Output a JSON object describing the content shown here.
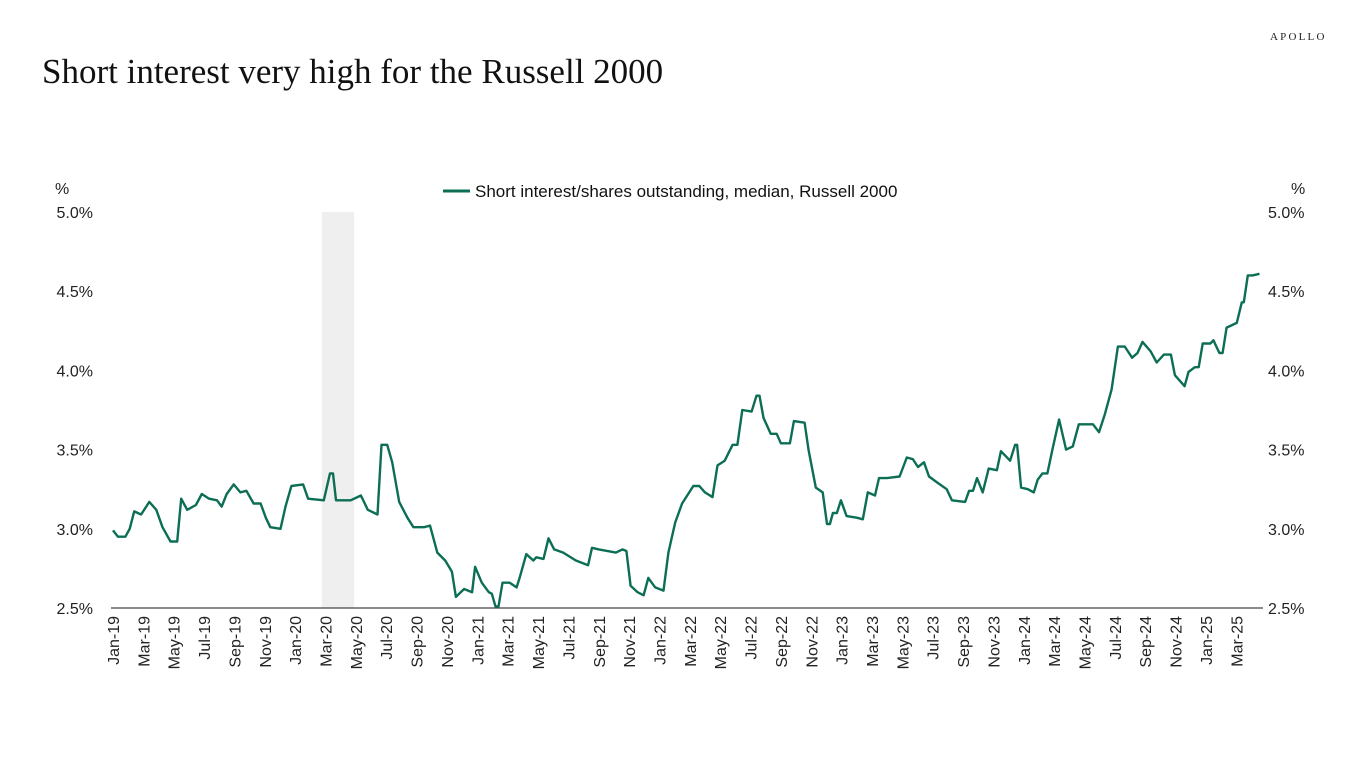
{
  "logo": "APOLLO",
  "title": "Short interest very high for the Russell 2000",
  "chart_data": {
    "type": "line",
    "title": "Short interest very high for the Russell 2000",
    "ylabel_left": "%",
    "ylabel_right": "%",
    "ylim": [
      2.5,
      5.0
    ],
    "yticks": [
      "2.5%",
      "3.0%",
      "3.5%",
      "4.0%",
      "4.5%",
      "5.0%"
    ],
    "ytick_values": [
      2.5,
      3.0,
      3.5,
      4.0,
      4.5,
      5.0
    ],
    "xticks": [
      "Jan-19",
      "Mar-19",
      "May-19",
      "Jul-19",
      "Sep-19",
      "Nov-19",
      "Jan-20",
      "Mar-20",
      "May-20",
      "Jul-20",
      "Sep-20",
      "Nov-20",
      "Jan-21",
      "Mar-21",
      "May-21",
      "Jul-21",
      "Sep-21",
      "Nov-21",
      "Jan-22",
      "Mar-22",
      "May-22",
      "Jul-22",
      "Sep-22",
      "Nov-22",
      "Jan-23",
      "Mar-23",
      "May-23",
      "Jul-23",
      "Sep-23",
      "Nov-23",
      "Jan-24",
      "Mar-24",
      "May-24",
      "Jul-24",
      "Sep-24",
      "Nov-24",
      "Jan-25",
      "Mar-25"
    ],
    "xlim": [
      "2019-01-01",
      "2025-03-01"
    ],
    "grid": false,
    "legend_position": "top-center",
    "shaded_period": [
      "2020-02-24",
      "2020-04-28"
    ],
    "colors": {
      "line": "#0b6e55",
      "shade": "#efefef",
      "axis": "#444444"
    },
    "series": [
      {
        "name": "Short interest/shares outstanding, median, Russell 2000",
        "points": [
          [
            "2019-01-01",
            2.99
          ],
          [
            "2019-01-11",
            2.95
          ],
          [
            "2019-01-26",
            2.95
          ],
          [
            "2019-02-04",
            3.0
          ],
          [
            "2019-02-13",
            3.11
          ],
          [
            "2019-02-27",
            3.09
          ],
          [
            "2019-03-13",
            3.17
          ],
          [
            "2019-03-27",
            3.12
          ],
          [
            "2019-04-09",
            3.01
          ],
          [
            "2019-04-25",
            2.92
          ],
          [
            "2019-05-08",
            2.92
          ],
          [
            "2019-05-16",
            3.19
          ],
          [
            "2019-05-28",
            3.12
          ],
          [
            "2019-06-15",
            3.15
          ],
          [
            "2019-06-27",
            3.22
          ],
          [
            "2019-07-11",
            3.19
          ],
          [
            "2019-07-27",
            3.18
          ],
          [
            "2019-08-06",
            3.14
          ],
          [
            "2019-08-16",
            3.22
          ],
          [
            "2019-08-30",
            3.28
          ],
          [
            "2019-09-13",
            3.23
          ],
          [
            "2019-09-25",
            3.24
          ],
          [
            "2019-10-09",
            3.16
          ],
          [
            "2019-10-23",
            3.16
          ],
          [
            "2019-11-03",
            3.07
          ],
          [
            "2019-11-12",
            3.01
          ],
          [
            "2019-12-02",
            3.0
          ],
          [
            "2019-12-12",
            3.14
          ],
          [
            "2019-12-24",
            3.27
          ],
          [
            "2020-01-17",
            3.28
          ],
          [
            "2020-01-27",
            3.19
          ],
          [
            "2020-02-28",
            3.18
          ],
          [
            "2020-03-10",
            3.35
          ],
          [
            "2020-03-16",
            3.35
          ],
          [
            "2020-03-22",
            3.18
          ],
          [
            "2020-04-21",
            3.18
          ],
          [
            "2020-05-11",
            3.21
          ],
          [
            "2020-05-25",
            3.12
          ],
          [
            "2020-06-14",
            3.09
          ],
          [
            "2020-06-22",
            3.53
          ],
          [
            "2020-07-03",
            3.53
          ],
          [
            "2020-07-13",
            3.42
          ],
          [
            "2020-07-27",
            3.17
          ],
          [
            "2020-08-13",
            3.07
          ],
          [
            "2020-08-25",
            3.01
          ],
          [
            "2020-09-16",
            3.01
          ],
          [
            "2020-09-28",
            3.02
          ],
          [
            "2020-10-12",
            2.85
          ],
          [
            "2020-10-28",
            2.8
          ],
          [
            "2020-11-11",
            2.73
          ],
          [
            "2020-11-19",
            2.57
          ],
          [
            "2020-12-05",
            2.62
          ],
          [
            "2020-12-21",
            2.6
          ],
          [
            "2020-12-27",
            2.76
          ],
          [
            "2021-01-10",
            2.66
          ],
          [
            "2021-01-24",
            2.6
          ],
          [
            "2021-01-30",
            2.59
          ],
          [
            "2021-02-07",
            2.51
          ],
          [
            "2021-02-13",
            2.51
          ],
          [
            "2021-02-21",
            2.66
          ],
          [
            "2021-03-05",
            2.66
          ],
          [
            "2021-03-19",
            2.63
          ],
          [
            "2021-03-25",
            2.69
          ],
          [
            "2021-04-08",
            2.84
          ],
          [
            "2021-04-22",
            2.8
          ],
          [
            "2021-04-28",
            2.82
          ],
          [
            "2021-05-12",
            2.81
          ],
          [
            "2021-05-22",
            2.94
          ],
          [
            "2021-06-03",
            2.87
          ],
          [
            "2021-06-21",
            2.85
          ],
          [
            "2021-07-16",
            2.8
          ],
          [
            "2021-08-10",
            2.77
          ],
          [
            "2021-08-18",
            2.88
          ],
          [
            "2021-09-01",
            2.87
          ],
          [
            "2021-10-05",
            2.85
          ],
          [
            "2021-10-18",
            2.87
          ],
          [
            "2021-10-26",
            2.86
          ],
          [
            "2021-11-04",
            2.64
          ],
          [
            "2021-11-18",
            2.6
          ],
          [
            "2021-11-30",
            2.58
          ],
          [
            "2021-12-09",
            2.69
          ],
          [
            "2021-12-23",
            2.63
          ],
          [
            "2022-01-09",
            2.61
          ],
          [
            "2022-01-19",
            2.85
          ],
          [
            "2022-02-02",
            3.04
          ],
          [
            "2022-02-16",
            3.16
          ],
          [
            "2022-03-08",
            3.27
          ],
          [
            "2022-03-20",
            3.27
          ],
          [
            "2022-04-01",
            3.23
          ],
          [
            "2022-04-16",
            3.2
          ],
          [
            "2022-04-26",
            3.4
          ],
          [
            "2022-05-10",
            3.43
          ],
          [
            "2022-05-26",
            3.53
          ],
          [
            "2022-06-05",
            3.53
          ],
          [
            "2022-06-15",
            3.75
          ],
          [
            "2022-07-03",
            3.74
          ],
          [
            "2022-07-13",
            3.84
          ],
          [
            "2022-07-19",
            3.84
          ],
          [
            "2022-07-27",
            3.7
          ],
          [
            "2022-08-11",
            3.6
          ],
          [
            "2022-08-23",
            3.6
          ],
          [
            "2022-09-01",
            3.54
          ],
          [
            "2022-09-19",
            3.54
          ],
          [
            "2022-09-27",
            3.68
          ],
          [
            "2022-10-18",
            3.67
          ],
          [
            "2022-10-26",
            3.5
          ],
          [
            "2022-11-10",
            3.26
          ],
          [
            "2022-11-24",
            3.23
          ],
          [
            "2022-12-02",
            3.03
          ],
          [
            "2022-12-08",
            3.03
          ],
          [
            "2022-12-14",
            3.1
          ],
          [
            "2022-12-22",
            3.1
          ],
          [
            "2022-12-30",
            3.18
          ],
          [
            "2023-01-11",
            3.08
          ],
          [
            "2023-02-01",
            3.07
          ],
          [
            "2023-02-13",
            3.06
          ],
          [
            "2023-02-23",
            3.23
          ],
          [
            "2023-03-07",
            3.21
          ],
          [
            "2023-03-15",
            3.32
          ],
          [
            "2023-03-31",
            3.32
          ],
          [
            "2023-04-26",
            3.33
          ],
          [
            "2023-05-10",
            3.45
          ],
          [
            "2023-05-22",
            3.44
          ],
          [
            "2023-06-02",
            3.39
          ],
          [
            "2023-06-14",
            3.42
          ],
          [
            "2023-06-24",
            3.33
          ],
          [
            "2023-07-11",
            3.29
          ],
          [
            "2023-07-29",
            3.25
          ],
          [
            "2023-08-09",
            3.18
          ],
          [
            "2023-09-05",
            3.17
          ],
          [
            "2023-09-13",
            3.24
          ],
          [
            "2023-09-21",
            3.24
          ],
          [
            "2023-09-29",
            3.32
          ],
          [
            "2023-10-10",
            3.23
          ],
          [
            "2023-10-22",
            3.38
          ],
          [
            "2023-11-08",
            3.37
          ],
          [
            "2023-11-16",
            3.49
          ],
          [
            "2023-12-04",
            3.43
          ],
          [
            "2023-12-14",
            3.53
          ],
          [
            "2023-12-18",
            3.53
          ],
          [
            "2023-12-26",
            3.26
          ],
          [
            "2024-01-09",
            3.25
          ],
          [
            "2024-01-21",
            3.23
          ],
          [
            "2024-01-29",
            3.31
          ],
          [
            "2024-02-08",
            3.35
          ],
          [
            "2024-02-18",
            3.35
          ],
          [
            "2024-02-28",
            3.5
          ],
          [
            "2024-03-11",
            3.69
          ],
          [
            "2024-03-25",
            3.5
          ],
          [
            "2024-04-08",
            3.52
          ],
          [
            "2024-04-20",
            3.66
          ],
          [
            "2024-05-18",
            3.66
          ],
          [
            "2024-05-30",
            3.61
          ],
          [
            "2024-06-11",
            3.72
          ],
          [
            "2024-06-25",
            3.88
          ],
          [
            "2024-07-07",
            4.15
          ],
          [
            "2024-07-21",
            4.15
          ],
          [
            "2024-08-05",
            4.08
          ],
          [
            "2024-08-16",
            4.11
          ],
          [
            "2024-08-26",
            4.18
          ],
          [
            "2024-09-12",
            4.12
          ],
          [
            "2024-09-24",
            4.05
          ],
          [
            "2024-10-08",
            4.1
          ],
          [
            "2024-10-22",
            4.1
          ],
          [
            "2024-10-30",
            3.97
          ],
          [
            "2024-11-19",
            3.9
          ],
          [
            "2024-11-27",
            3.99
          ],
          [
            "2024-12-09",
            4.02
          ],
          [
            "2024-12-17",
            4.02
          ],
          [
            "2024-12-25",
            4.17
          ],
          [
            "2025-01-10",
            4.17
          ],
          [
            "2025-01-16",
            4.19
          ],
          [
            "2025-01-28",
            4.11
          ],
          [
            "2025-02-04",
            4.11
          ],
          [
            "2025-02-12",
            4.27
          ],
          [
            "2025-03-02",
            4.3
          ],
          [
            "2025-03-12",
            4.43
          ],
          [
            "2025-03-16",
            4.43
          ],
          [
            "2025-03-24",
            4.6
          ],
          [
            "2025-04-03",
            4.6
          ],
          [
            "2025-04-17",
            4.61
          ]
        ]
      }
    ]
  }
}
